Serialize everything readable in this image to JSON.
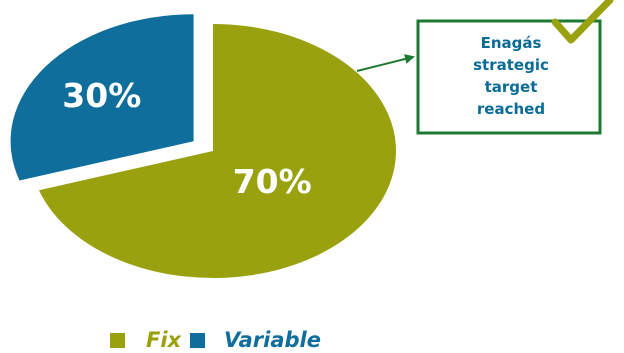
{
  "chart_data": {
    "type": "pie",
    "categories": [
      "Fix",
      "Variable"
    ],
    "values": [
      70,
      30
    ],
    "data_labels": [
      "70%",
      "30%"
    ],
    "exploded": "Variable",
    "legend": {
      "entries": [
        "Fix",
        "Variable"
      ],
      "placement": "bottom"
    }
  },
  "colors": {
    "Fix": "#9aa10e",
    "Variable": "#0f6e9c",
    "callout_border": "#1e7a30",
    "callout_text": "#0a6c96",
    "check": "#9aa10e"
  },
  "callout": {
    "lines": [
      "Enagás",
      "strategic",
      "target",
      "reached"
    ],
    "icon": "checkmark-icon"
  }
}
